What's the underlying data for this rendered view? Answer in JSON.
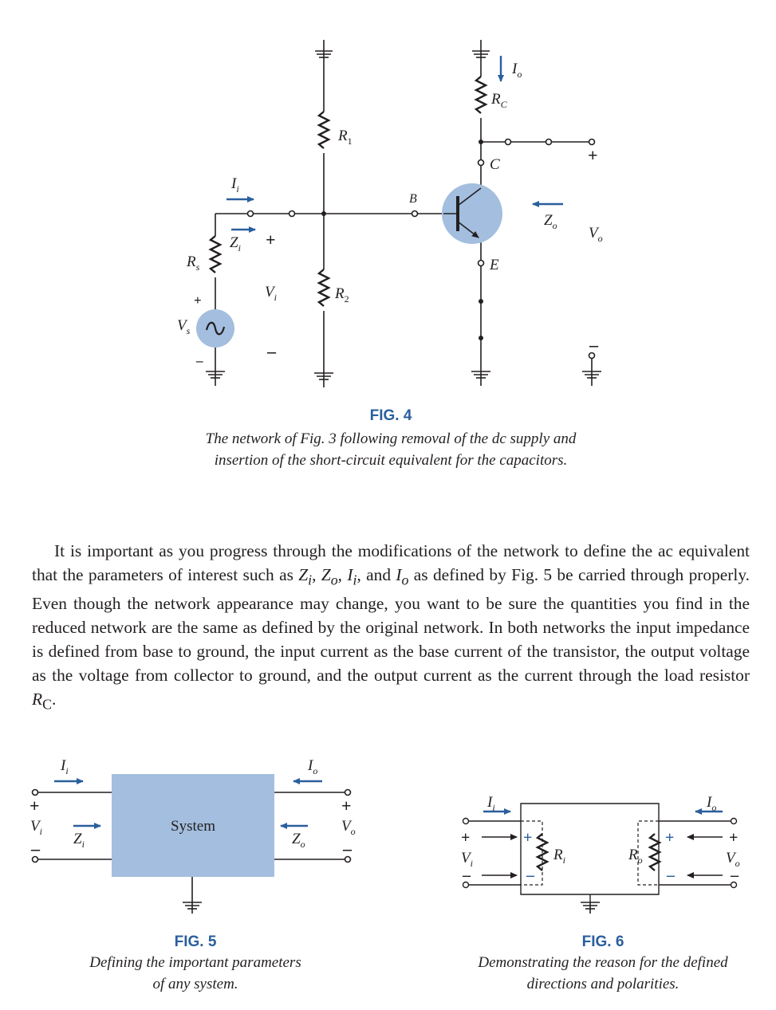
{
  "fig4": {
    "label": "FIG. 4",
    "caption": "The network of Fig. 3 following removal of the dc supply and insertion of the short-circuit equivalent for the capacitors.",
    "labels": {
      "io": "I",
      "io_sub": "o",
      "rc": "R",
      "rc_sub": "C",
      "r1": "R",
      "r1_sub": "1",
      "r2": "R",
      "r2_sub": "2",
      "c": "C",
      "b": "B",
      "e": "E",
      "ii": "I",
      "ii_sub": "i",
      "zi": "Z",
      "zi_sub": "i",
      "zo": "Z",
      "zo_sub": "o",
      "vo": "V",
      "vo_sub": "o",
      "vi": "V",
      "vi_sub": "i",
      "rs": "R",
      "rs_sub": "s",
      "vs": "V",
      "vs_sub": "s",
      "plus": "+",
      "minus": "–"
    }
  },
  "paragraph": {
    "s1": "It is important as you progress through the modifications of the network to define the ac equivalent that the parameters of interest such as ",
    "zi": "Z",
    "zi_sub": "i",
    "comma1": ", ",
    "zo": "Z",
    "zo_sub": "o",
    "comma2": ", ",
    "ii": "I",
    "ii_sub": "i",
    "and": ", and ",
    "io": "I",
    "io_sub": "o",
    "s2": " as defined by Fig. 5 be carried through properly. Even though the network appearance may change, you want to be sure the quantities you find in the reduced network are the same as defined by the original network. In both networks the input impedance is defined from base to ground, the input current as the base current of the transistor, the output voltage as the voltage from collector to ground, and the output current as the current through the load resistor ",
    "rc": "R",
    "rc_sub": "C",
    "end": "."
  },
  "fig5": {
    "label": "FIG. 5",
    "caption_line1": "Defining the important parameters",
    "caption_line2": "of any system.",
    "box_label": "System",
    "labels": {
      "ii": "I",
      "ii_sub": "i",
      "io": "I",
      "io_sub": "o",
      "zi": "Z",
      "zi_sub": "i",
      "zo": "Z",
      "zo_sub": "o",
      "vi": "V",
      "vi_sub": "i",
      "vo": "V",
      "vo_sub": "o",
      "plus": "+",
      "minus": "–"
    }
  },
  "fig6": {
    "label": "FIG. 6",
    "caption_line1": "Demonstrating the reason for the defined",
    "caption_line2": "directions and polarities.",
    "labels": {
      "ii": "I",
      "ii_sub": "i",
      "io": "I",
      "io_sub": "o",
      "ri": "R",
      "ri_sub": "i",
      "ro": "R",
      "ro_sub": "o",
      "vi": "V",
      "vi_sub": "i",
      "vo": "V",
      "vo_sub": "o",
      "plus": "+",
      "minus": "–"
    }
  },
  "colors": {
    "accent_blue": "#2a5f9e",
    "fill_blue": "#a3bede",
    "ink": "#231f20"
  }
}
